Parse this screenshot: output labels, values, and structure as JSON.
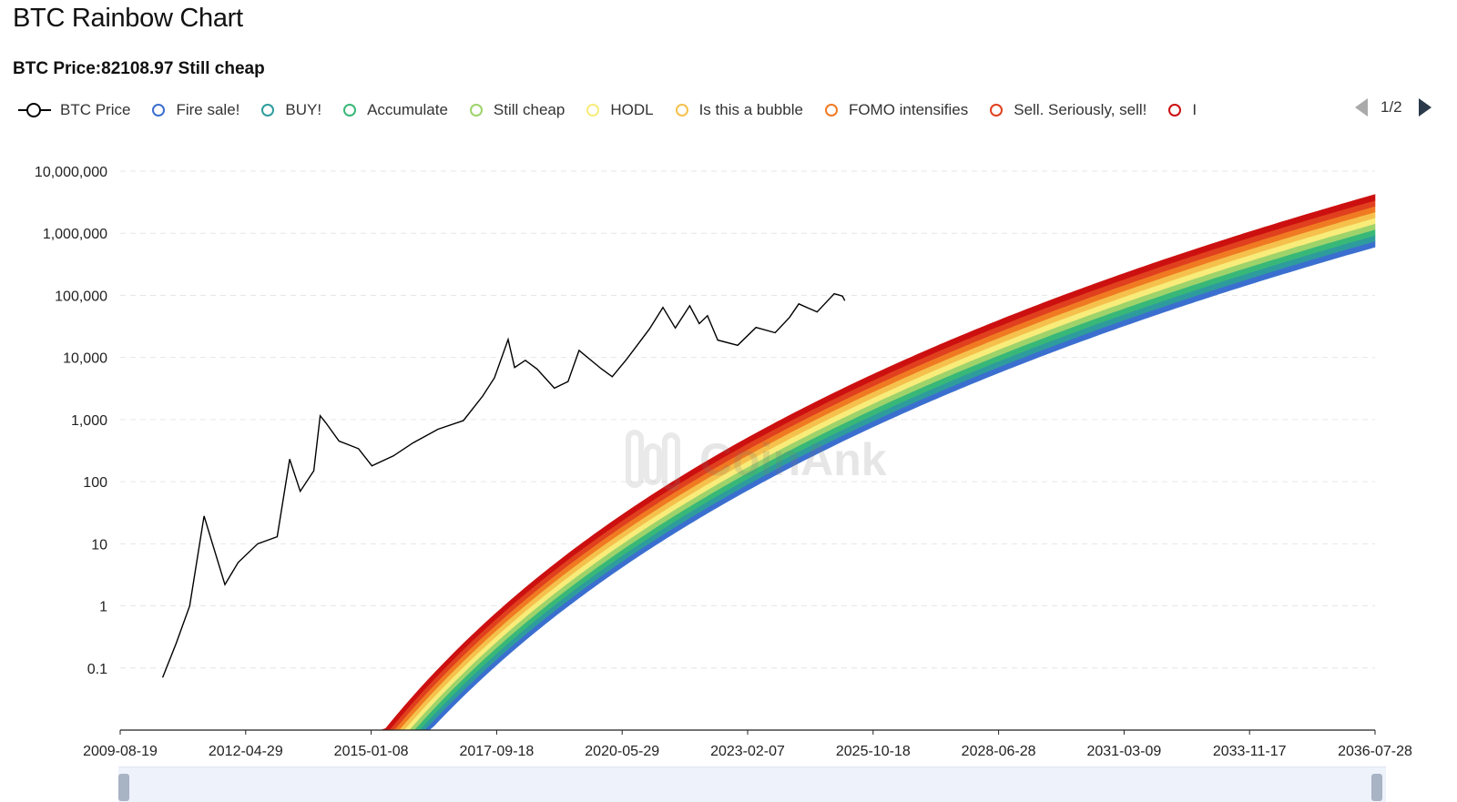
{
  "page": {
    "title": "BTC Rainbow Chart",
    "price_label": "BTC Price:82108.97 Still cheap"
  },
  "legend": {
    "price_series": "BTC Price",
    "bands": [
      {
        "label": "Fire sale!",
        "color": "#3b6fcf"
      },
      {
        "label": "BUY!",
        "color": "#2e9c9c"
      },
      {
        "label": "Accumulate",
        "color": "#38b878"
      },
      {
        "label": "Still cheap",
        "color": "#9ed36b"
      },
      {
        "label": "HODL",
        "color": "#f8ec7a"
      },
      {
        "label": "Is this a bubble",
        "color": "#f5c14c"
      },
      {
        "label": "FOMO intensifies",
        "color": "#f07a22"
      },
      {
        "label": "Sell. Seriously, sell!",
        "color": "#e0401e"
      },
      {
        "label": "I",
        "color": "#cc1010"
      }
    ],
    "pager": "1/2"
  },
  "watermark": {
    "text": "CoinAnk"
  },
  "chart_data": {
    "type": "area",
    "yscale": "log",
    "y_ticks": [
      "0.1",
      "1",
      "10",
      "100",
      "1,000",
      "10,000",
      "100,000",
      "1,000,000",
      "10,000,000"
    ],
    "x_ticks": [
      "2009-08-19",
      "2012-04-29",
      "2015-01-08",
      "2017-09-18",
      "2020-05-29",
      "2023-02-07",
      "2025-10-18",
      "2028-06-28",
      "2031-03-09",
      "2033-11-17",
      "2036-07-28"
    ],
    "band_colors": [
      "#3b6fcf",
      "#2e9c9c",
      "#38b878",
      "#9ed36b",
      "#f8ec7a",
      "#f5c14c",
      "#f07a22",
      "#e0401e",
      "#cc1010"
    ],
    "band_edges_at_end": [
      600000,
      4200000
    ],
    "series": [
      {
        "name": "BTC Price",
        "color": "#000000",
        "points": [
          [
            "2010-07-18",
            0.07
          ],
          [
            "2010-11-01",
            0.25
          ],
          [
            "2011-02-15",
            1.0
          ],
          [
            "2011-06-08",
            28
          ],
          [
            "2011-08-01",
            12
          ],
          [
            "2011-11-18",
            2.2
          ],
          [
            "2012-03-01",
            5
          ],
          [
            "2012-08-01",
            10
          ],
          [
            "2013-01-01",
            13
          ],
          [
            "2013-04-09",
            230
          ],
          [
            "2013-07-01",
            70
          ],
          [
            "2013-10-15",
            150
          ],
          [
            "2013-12-04",
            1150
          ],
          [
            "2014-01-15",
            900
          ],
          [
            "2014-05-01",
            450
          ],
          [
            "2014-10-01",
            340
          ],
          [
            "2015-01-14",
            180
          ],
          [
            "2015-07-01",
            260
          ],
          [
            "2015-12-01",
            420
          ],
          [
            "2016-06-15",
            700
          ],
          [
            "2016-12-31",
            960
          ],
          [
            "2017-06-01",
            2400
          ],
          [
            "2017-09-01",
            4700
          ],
          [
            "2017-12-17",
            19500
          ],
          [
            "2018-02-06",
            6900
          ],
          [
            "2018-05-01",
            9000
          ],
          [
            "2018-08-01",
            6500
          ],
          [
            "2018-12-15",
            3200
          ],
          [
            "2019-04-01",
            4100
          ],
          [
            "2019-06-26",
            13000
          ],
          [
            "2019-12-17",
            6600
          ],
          [
            "2020-03-12",
            4900
          ],
          [
            "2020-07-01",
            9200
          ],
          [
            "2020-12-31",
            29000
          ],
          [
            "2021-04-14",
            64000
          ],
          [
            "2021-07-20",
            29800
          ],
          [
            "2021-11-10",
            68000
          ],
          [
            "2022-01-24",
            35000
          ],
          [
            "2022-03-29",
            47000
          ],
          [
            "2022-06-18",
            19000
          ],
          [
            "2022-11-21",
            15700
          ],
          [
            "2023-04-14",
            30400
          ],
          [
            "2023-09-11",
            25000
          ],
          [
            "2024-01-01",
            44000
          ],
          [
            "2024-03-14",
            73000
          ],
          [
            "2024-08-05",
            54000
          ],
          [
            "2024-12-17",
            106000
          ],
          [
            "2025-01-20",
            102000
          ],
          [
            "2025-02-20",
            97000
          ],
          [
            "2025-03-10",
            82108.97
          ]
        ]
      }
    ]
  }
}
